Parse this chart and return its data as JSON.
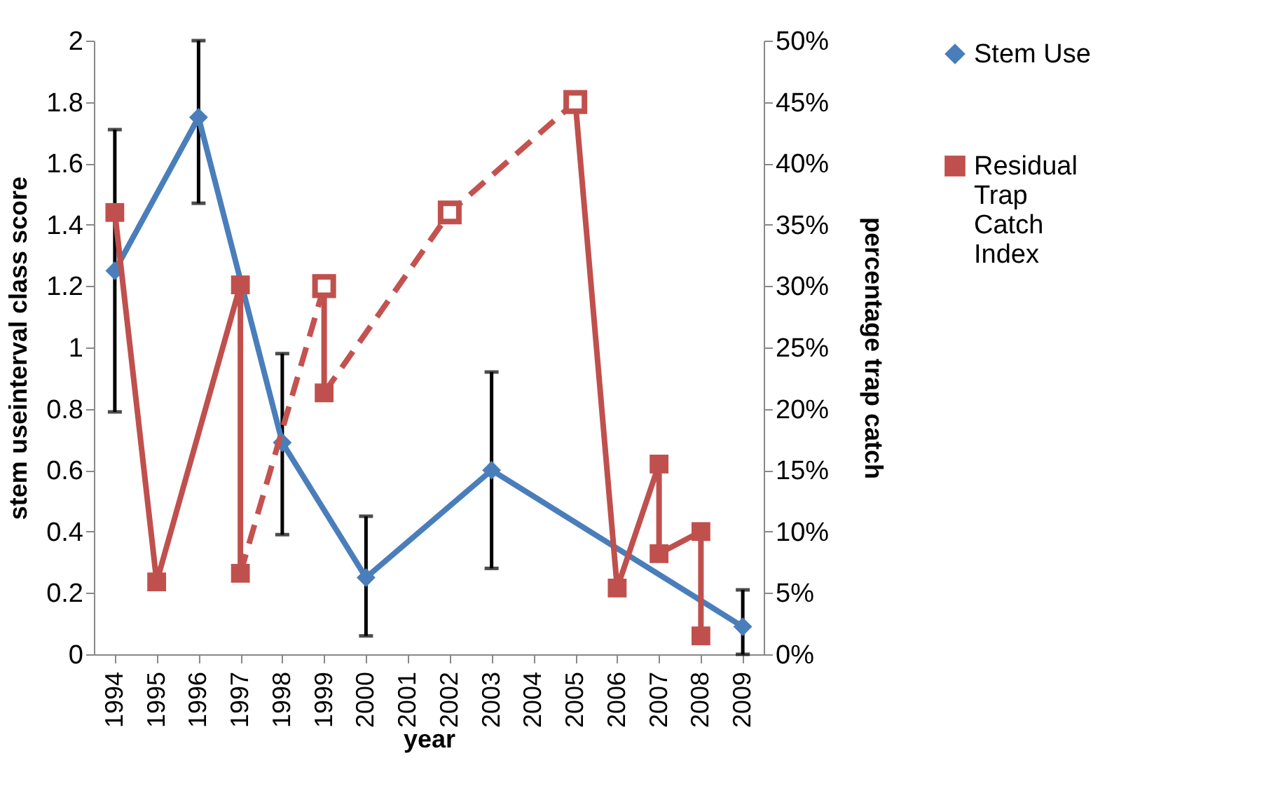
{
  "chart_data": {
    "type": "line",
    "xlabel": "year",
    "ylabel": "stem useinterval class score",
    "y2label": "percentage trap catch",
    "xlim": [
      1993.5,
      2009.5
    ],
    "xticks": [
      1994,
      1995,
      1996,
      1997,
      1998,
      1999,
      2000,
      2001,
      2002,
      2003,
      2004,
      2005,
      2006,
      2007,
      2008,
      2009
    ],
    "ylim": [
      0,
      2
    ],
    "yticks": [
      0,
      0.2,
      0.4,
      0.6,
      0.8,
      1,
      1.2,
      1.4,
      1.6,
      1.8,
      2
    ],
    "y2lim": [
      0,
      50
    ],
    "y2ticks": [
      {
        "value": 0,
        "label": "0%"
      },
      {
        "value": 5,
        "label": "5%"
      },
      {
        "value": 10,
        "label": "10%"
      },
      {
        "value": 15,
        "label": "15%"
      },
      {
        "value": 20,
        "label": "20%"
      },
      {
        "value": 25,
        "label": "25%"
      },
      {
        "value": 30,
        "label": "30%"
      },
      {
        "value": 35,
        "label": "35%"
      },
      {
        "value": 40,
        "label": "40%"
      },
      {
        "value": 45,
        "label": "45%"
      },
      {
        "value": 50,
        "label": "50%"
      }
    ],
    "grid": false,
    "legend": "right",
    "series": [
      {
        "name": "Stem Use",
        "color": "#4a7ebb",
        "marker": "diamond",
        "x": [
          1994,
          1996,
          1998,
          2000,
          2003,
          2009
        ],
        "values": [
          1.25,
          1.75,
          0.69,
          0.25,
          0.6,
          0.09
        ],
        "errors": [
          [
            0.79,
            1.71
          ],
          [
            1.47,
            2.0
          ],
          [
            0.39,
            0.98
          ],
          [
            0.06,
            0.45
          ],
          [
            0.28,
            0.92
          ],
          [
            0,
            0.21
          ]
        ]
      },
      {
        "name": "Residual Trap Catch Index",
        "color": "#c0504d",
        "marker": "square",
        "axis": "y2",
        "x": [
          1994,
          1995,
          1997,
          1997,
          1998,
          1999,
          1999,
          2004,
          2005,
          2006,
          2007,
          2007,
          2008,
          2008
        ],
        "values": [
          36,
          5.9,
          30.1,
          6.6,
          null,
          30,
          21.3,
          null,
          45,
          5.4,
          15.5,
          8.2,
          10,
          1.5
        ]
      },
      {
        "color": "#c4524f",
        "marker": "none",
        "line_style": "dashed",
        "axis": "y2",
        "x": [
          1997,
          1999
        ],
        "values": [
          6.6,
          30
        ]
      },
      {
        "color": "#c4524f",
        "marker": "none",
        "line_style": "dashed",
        "axis": "y2",
        "x": [
          1999,
          2002,
          2005
        ],
        "values": [
          21.3,
          36,
          45
        ]
      },
      {
        "type": "scatter",
        "color": "#c0504d",
        "marker": "square",
        "axis": "y2",
        "x": [
          1999,
          2002,
          2005
        ],
        "values": [
          30,
          36,
          45
        ]
      }
    ]
  }
}
